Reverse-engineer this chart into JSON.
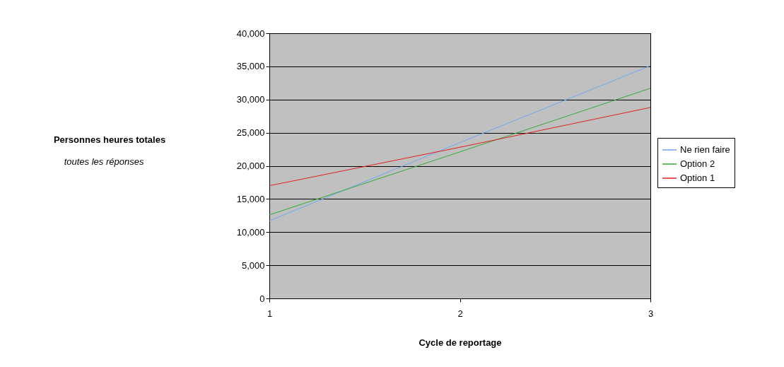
{
  "chart_data": {
    "type": "line",
    "xlabel": "Cycle de reportage",
    "annotations": [
      "Personnes heures totales",
      "toutes les réponses"
    ],
    "x": [
      1,
      2,
      3
    ],
    "series": [
      {
        "name": "Ne rien faire",
        "color": "#6fa8f0",
        "values": [
          11700,
          23500,
          35100
        ]
      },
      {
        "name": "Option 2",
        "color": "#33aa33",
        "values": [
          12600,
          22100,
          31700
        ]
      },
      {
        "name": "Option 1",
        "color": "#e02020",
        "values": [
          17000,
          22800,
          28800
        ]
      }
    ],
    "xlim": [
      1,
      3
    ],
    "xticks": [
      1,
      2,
      3
    ],
    "ylim": [
      0,
      40000
    ],
    "yticks": [
      0,
      {
        "value": 5000,
        "label": "5,000"
      },
      {
        "value": 10000,
        "label": "10,000"
      },
      {
        "value": 15000,
        "label": "15,000"
      },
      {
        "value": 20000,
        "label": "20,000"
      },
      {
        "value": 25000,
        "label": "25,000"
      },
      {
        "value": 30000,
        "label": "30,000"
      },
      {
        "value": 35000,
        "label": "35,000"
      },
      {
        "value": 40000,
        "label": "40,000"
      }
    ],
    "grid": "y",
    "legend": "right",
    "marker": "none",
    "line_style": "solid"
  }
}
